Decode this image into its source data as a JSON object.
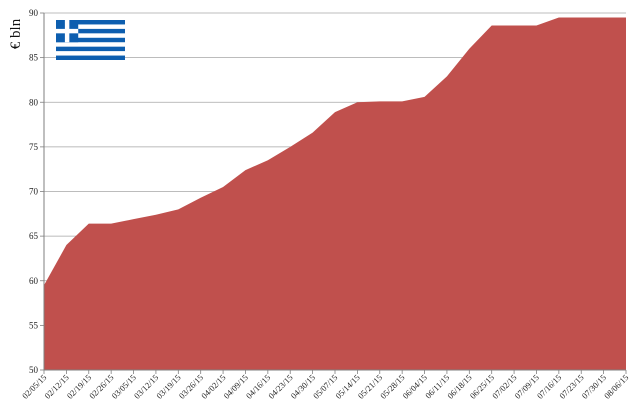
{
  "chart_data": {
    "type": "area",
    "ylabel": "€ bln",
    "xlabel": "",
    "title": "",
    "ylim": [
      50,
      90
    ],
    "yticks": [
      50,
      55,
      60,
      65,
      70,
      75,
      80,
      85,
      90
    ],
    "grid": "horizontal",
    "legend": "none",
    "series": [
      {
        "color": "#c0504d",
        "x": [
          "02/05/15",
          "02/12/15",
          "02/19/15",
          "02/26/15",
          "03/05/15",
          "03/12/15",
          "03/19/15",
          "03/26/15",
          "04/02/15",
          "04/09/15",
          "04/16/15",
          "04/23/15",
          "04/30/15",
          "05/07/15",
          "05/14/15",
          "05/21/15",
          "05/28/15",
          "06/04/15",
          "06/11/15",
          "06/18/15",
          "06/25/15",
          "07/02/15",
          "07/09/15",
          "07/16/15",
          "07/23/15",
          "07/30/15",
          "08/06/15"
        ],
        "values": [
          59.5,
          64.0,
          66.4,
          66.4,
          66.9,
          67.4,
          68.0,
          69.3,
          70.5,
          72.4,
          73.5,
          75.0,
          76.6,
          78.9,
          80.0,
          80.1,
          80.1,
          80.6,
          82.9,
          86.0,
          88.6,
          88.6,
          88.6,
          89.5,
          89.5,
          89.5,
          89.5
        ]
      }
    ]
  },
  "flag": {
    "name": "greece-flag",
    "stripe_blue": "#0d5eaf",
    "white": "#ffffff"
  }
}
